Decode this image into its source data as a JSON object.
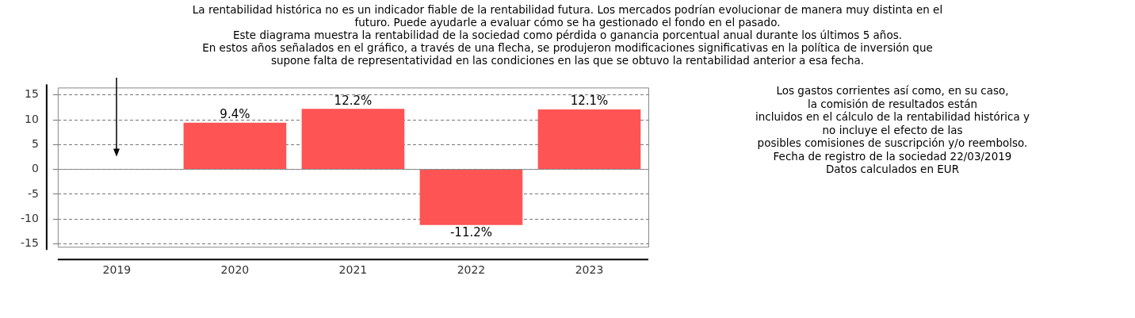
{
  "chart_data": {
    "type": "bar",
    "title": "La rentabilidad histórica no es un indicador fiable de la rentabilidad futura. Los mercados podrían evolucionar de manera muy distinta en el\nfuturo. Puede ayudarle a evaluar cómo se ha gestionado el fondo en el pasado.\nEste diagrama muestra la rentabilidad de la sociedad como pérdida o ganancia porcentual anual durante los últimos 5 años.\nEn estos años señalados en el gráfico, a través de una flecha, se produjeron modificaciones significativas en la política de inversión que\nsupone falta de representatividad en las condiciones en las que se obtuvo la rentabilidad anterior a esa fecha.",
    "categories": [
      "2019",
      "2020",
      "2021",
      "2022",
      "2023"
    ],
    "values": [
      null,
      9.4,
      12.2,
      -11.2,
      12.1
    ],
    "value_labels": [
      null,
      "9.4%",
      "12.2%",
      "-11.2%",
      "12.1%"
    ],
    "color": "#fe5454",
    "ylim": [
      -15.6,
      16.5
    ],
    "yticks": [
      -15,
      -10,
      -5,
      0,
      5,
      10,
      15
    ],
    "grid": "y",
    "legend": false,
    "annotations": [
      "Los gastos corrientes así como, en su caso,\nla comisión de resultados están\nincluidos en el cálculo de la rentabilidad histórica y\nno incluye el efecto de las\nposibles comisiones de suscripción y/o reembolso.\nFecha de registro de la sociedad 22/03/2019\nDatos calculados en EUR"
    ]
  }
}
